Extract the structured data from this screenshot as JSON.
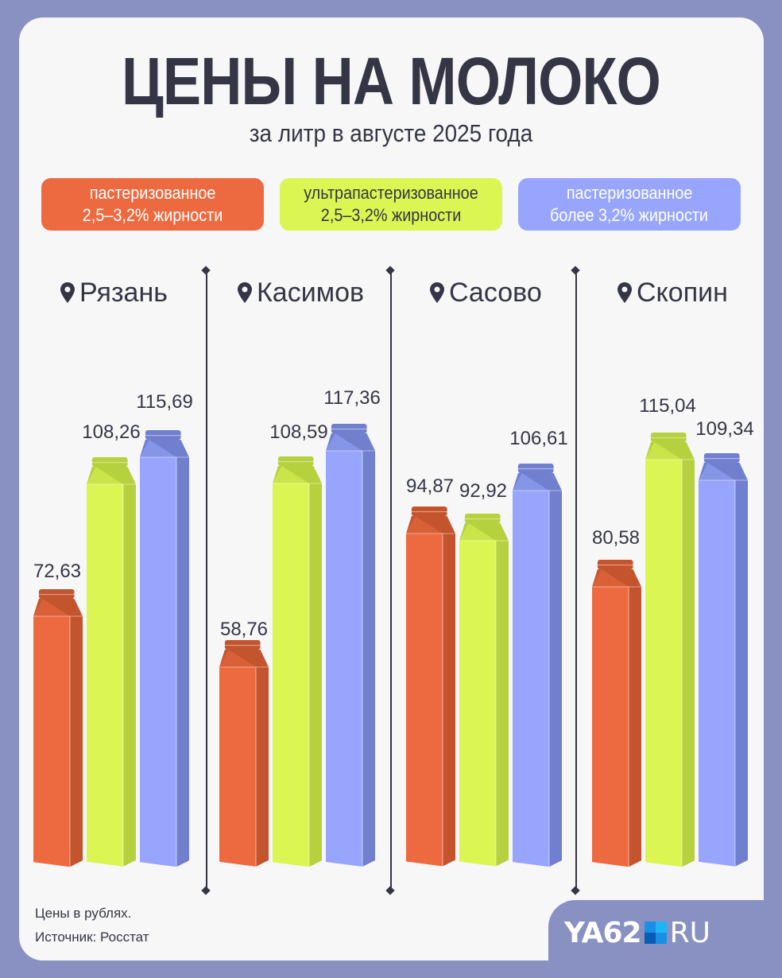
{
  "header": {
    "title": "ЦЕНЫ НА МОЛОКО",
    "subtitle": "за литр в августе 2025 года"
  },
  "legend": [
    {
      "line1": "пастеризованное",
      "line2": "2,5–3,2% жирности",
      "color": "#ed6a40",
      "text_color": "#ffffff"
    },
    {
      "line1": "ультрапастеризованное",
      "line2": "2,5–3,2% жирности",
      "color": "#dbf553",
      "text_color": "#343645"
    },
    {
      "line1": "пастеризованное",
      "line2": "более 3,2% жирности",
      "color": "#97a6fc",
      "text_color": "#ffffff"
    }
  ],
  "cities": [
    {
      "name": "Рязань",
      "values": [
        "72,63",
        "108,26",
        "115,69"
      ]
    },
    {
      "name": "Касимов",
      "values": [
        "58,76",
        "108,59",
        "117,36"
      ]
    },
    {
      "name": "Сасово",
      "values": [
        "94,87",
        "92,92",
        "106,61"
      ]
    },
    {
      "name": "Скопин",
      "values": [
        "80,58",
        "115,04",
        "109,34"
      ]
    }
  ],
  "footer": {
    "note": "Цены в рублях.",
    "source": "Источник: Росстат"
  },
  "logo": {
    "left": "YA62",
    "right": "RU"
  },
  "colors": {
    "background": "#8891c1",
    "card": "#f7f7f8",
    "text": "#343645",
    "orange_front": "#ed6a40",
    "orange_side": "#c4542e",
    "green_front": "#dbf553",
    "green_side": "#b6d13e",
    "blue_front": "#97a6fc",
    "blue_side": "#7080cf"
  },
  "chart_data": {
    "type": "bar",
    "title": "ЦЕНЫ НА МОЛОКО",
    "subtitle": "за литр в августе 2025 года",
    "xlabel": "",
    "ylabel": "Цены в рублях",
    "categories": [
      "Рязань",
      "Касимов",
      "Сасово",
      "Скопин"
    ],
    "series": [
      {
        "name": "пастеризованное 2,5–3,2% жирности",
        "color": "#ed6a40",
        "values": [
          72.63,
          58.76,
          94.87,
          80.58
        ]
      },
      {
        "name": "ультрапастеризованное 2,5–3,2% жирности",
        "color": "#dbf553",
        "values": [
          108.26,
          108.59,
          92.92,
          115.04
        ]
      },
      {
        "name": "пастеризованное более 3,2% жирности",
        "color": "#97a6fc",
        "values": [
          115.69,
          117.36,
          106.61,
          109.34
        ]
      }
    ],
    "legend_position": "top",
    "grid": false,
    "ylim": [
      0,
      120
    ],
    "source": "Росстат"
  }
}
